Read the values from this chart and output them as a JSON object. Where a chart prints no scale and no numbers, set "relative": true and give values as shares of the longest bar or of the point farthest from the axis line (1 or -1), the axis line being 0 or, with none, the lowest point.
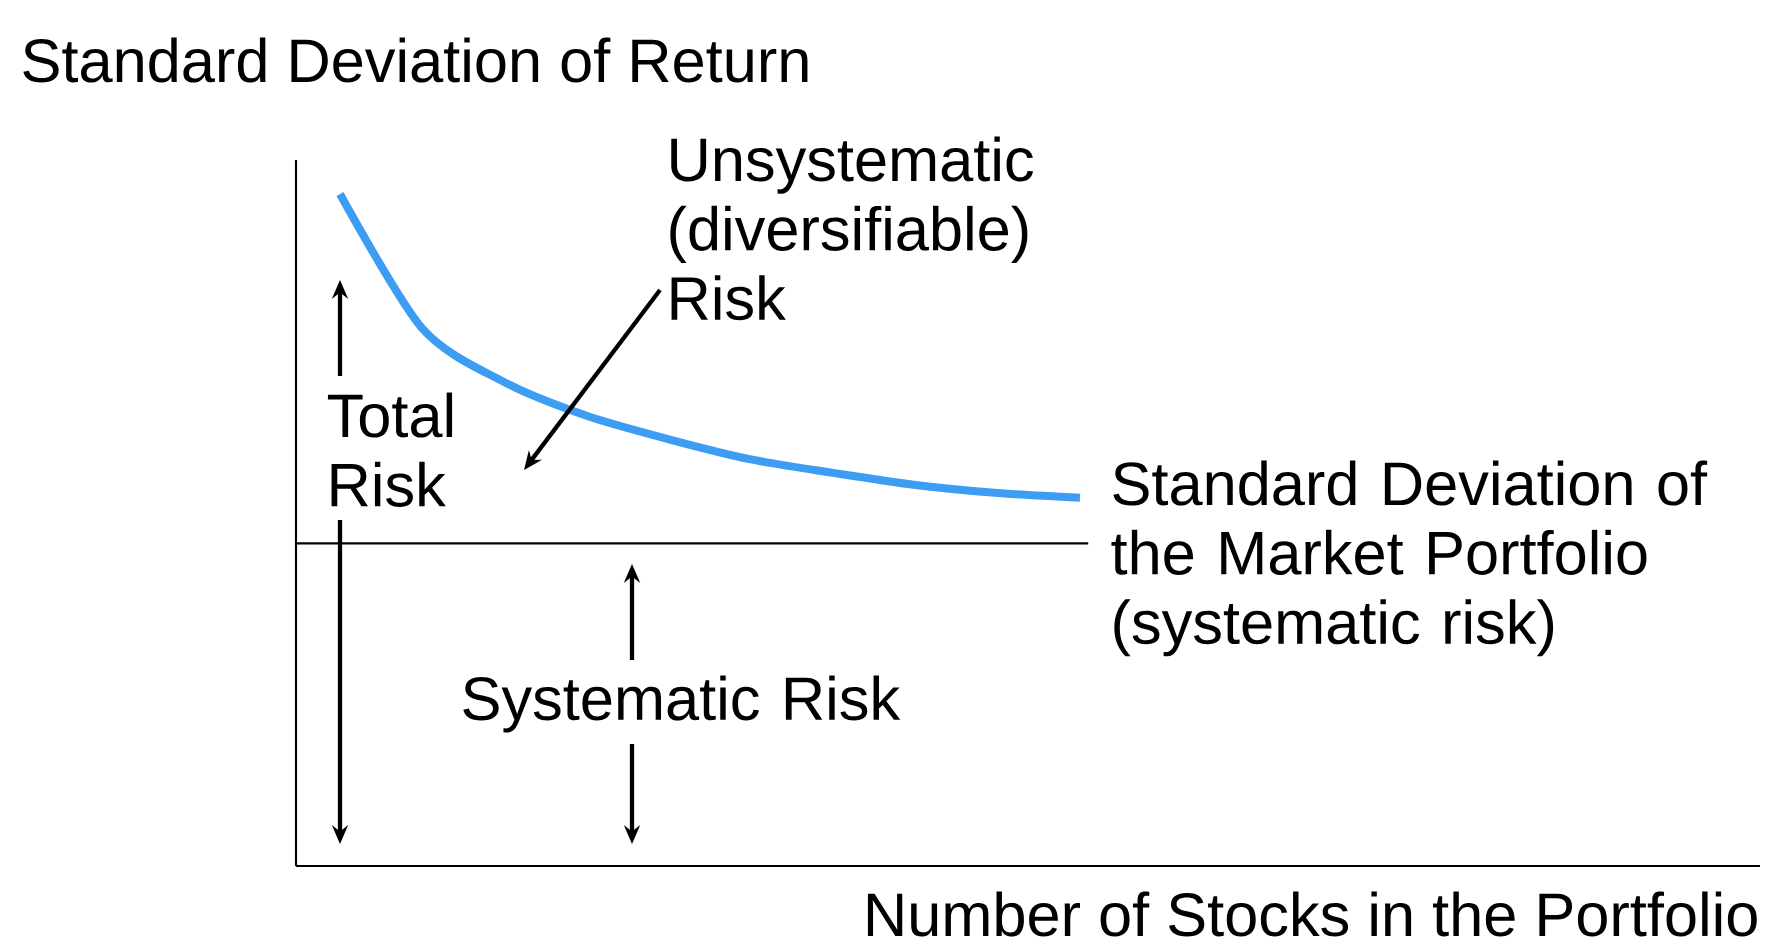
{
  "chart_data": {
    "type": "line",
    "title": "Standard Deviation of Return",
    "xlabel": "Number of Stocks in the Portfolio",
    "categories": [
      null,
      null,
      null,
      null,
      null,
      null,
      null,
      null,
      null,
      null
    ],
    "series": [
      {
        "color": "#3d9df2",
        "values": [
          1.0,
          0.8,
          0.72,
          0.67,
          0.635,
          0.605,
          0.585,
          0.567,
          0.555,
          0.548
        ]
      }
    ],
    "relative": true,
    "ref_lines": [
      {
        "axis": "y",
        "value": 0.48,
        "color": "#000000"
      }
    ],
    "annotations": [
      "Unsystematic (diversifiable) Risk",
      "Total Risk",
      "Systematic Risk",
      "Standard Deviation of the Market Portfolio (systematic risk)"
    ],
    "marker": "none"
  }
}
